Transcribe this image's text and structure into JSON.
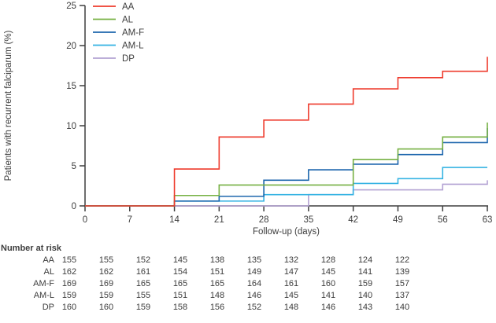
{
  "colors": {
    "axis": "#3f3f3f",
    "text": "#3d3d3d",
    "aa_red": "#ee3b2d",
    "al_green": "#76b043",
    "amf_blue": "#1d66ad",
    "aml_lightblue": "#35b3e3",
    "dp_purple": "#b3a2d3"
  },
  "chart_data": {
    "type": "line",
    "subtype": "step-cumulative-incidence",
    "title": "",
    "xlabel": "Follow-up (days)",
    "ylabel": "Patients with recurrent falciparum (%)",
    "xlim": [
      0,
      63
    ],
    "ylim": [
      0,
      25
    ],
    "xticks": [
      0,
      7,
      14,
      21,
      28,
      35,
      42,
      49,
      56,
      63
    ],
    "yticks": [
      0,
      5,
      10,
      15,
      20,
      25
    ],
    "grid": "off",
    "legend_position": "top-left",
    "series": [
      {
        "name": "AA",
        "color": "#ee3b2d",
        "steps": [
          [
            0,
            0
          ],
          [
            14,
            4.6
          ],
          [
            21,
            8.6
          ],
          [
            28,
            10.7
          ],
          [
            35,
            12.7
          ],
          [
            42,
            14.6
          ],
          [
            49,
            16.0
          ],
          [
            56,
            16.8
          ],
          [
            63,
            18.6
          ]
        ]
      },
      {
        "name": "AL",
        "color": "#76b043",
        "steps": [
          [
            0,
            0
          ],
          [
            14,
            1.3
          ],
          [
            21,
            2.6
          ],
          [
            42,
            5.8
          ],
          [
            49,
            7.1
          ],
          [
            56,
            8.6
          ],
          [
            63,
            10.4
          ]
        ]
      },
      {
        "name": "AM-F",
        "color": "#1d66ad",
        "steps": [
          [
            0,
            0
          ],
          [
            14,
            0.6
          ],
          [
            21,
            1.2
          ],
          [
            28,
            3.2
          ],
          [
            35,
            4.5
          ],
          [
            42,
            5.2
          ],
          [
            49,
            6.4
          ],
          [
            56,
            7.9
          ],
          [
            63,
            9.7
          ]
        ]
      },
      {
        "name": "AM-L",
        "color": "#35b3e3",
        "steps": [
          [
            0,
            0
          ],
          [
            14,
            0.6
          ],
          [
            28,
            1.4
          ],
          [
            42,
            2.8
          ],
          [
            49,
            3.4
          ],
          [
            56,
            4.8
          ]
        ]
      },
      {
        "name": "DP",
        "color": "#b3a2d3",
        "steps": [
          [
            0,
            0
          ],
          [
            35,
            1.4
          ],
          [
            42,
            2.0
          ],
          [
            56,
            2.7
          ],
          [
            63,
            3.2
          ]
        ]
      }
    ]
  },
  "risk_table": {
    "heading": "Number at risk",
    "columns_days": [
      0,
      7,
      14,
      21,
      28,
      35,
      42,
      49,
      56,
      63
    ],
    "rows": [
      {
        "label": "AA",
        "values": [
          155,
          155,
          152,
          145,
          138,
          135,
          132,
          128,
          124,
          122
        ]
      },
      {
        "label": "AL",
        "values": [
          162,
          162,
          161,
          154,
          151,
          149,
          147,
          145,
          141,
          139
        ]
      },
      {
        "label": "AM-F",
        "values": [
          169,
          169,
          165,
          165,
          165,
          164,
          161,
          160,
          159,
          157
        ]
      },
      {
        "label": "AM-L",
        "values": [
          159,
          159,
          155,
          151,
          148,
          146,
          145,
          141,
          140,
          137
        ]
      },
      {
        "label": "DP",
        "values": [
          160,
          160,
          159,
          158,
          156,
          152,
          148,
          146,
          143,
          140
        ]
      }
    ]
  }
}
